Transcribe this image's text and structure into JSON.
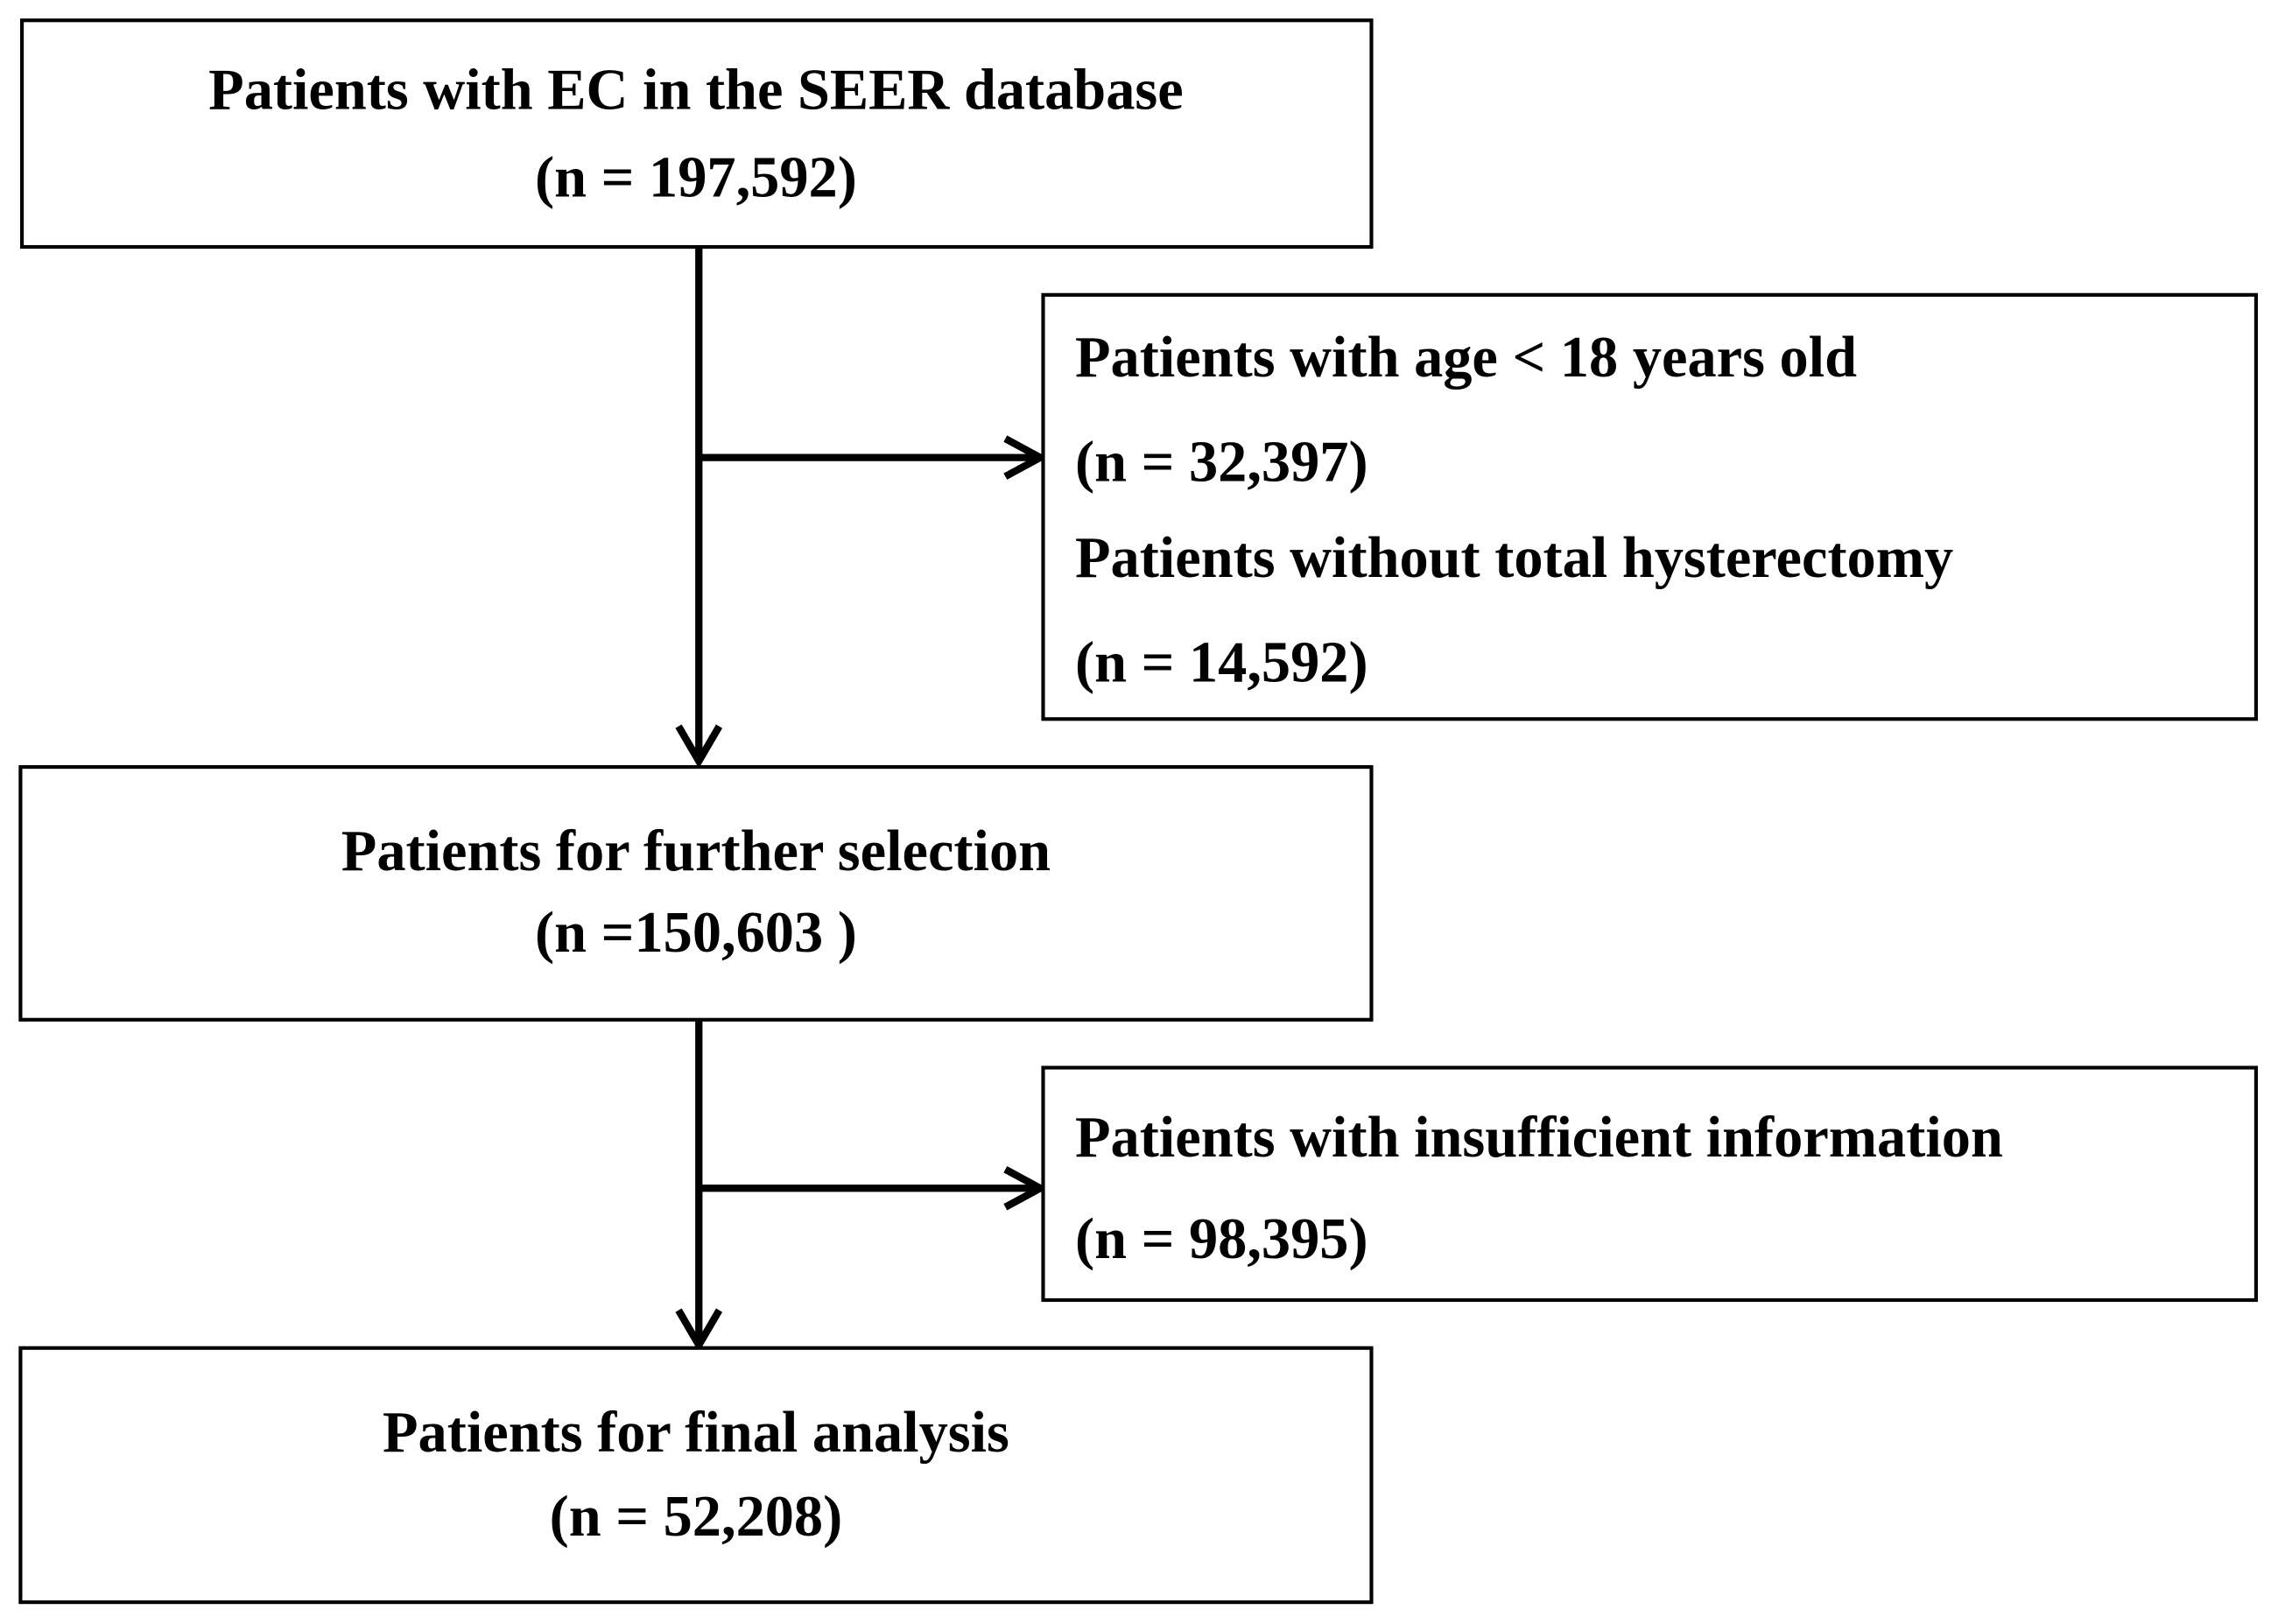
{
  "nodes": [
    {
      "lines": [
        "Patients with EC in the SEER database",
        "(n = 197,592)"
      ]
    },
    {
      "lines": [
        "Patients with age < 18 years old",
        "(n = 32,397)",
        "Patients without total hysterectomy",
        "(n = 14,592)"
      ]
    },
    {
      "lines": [
        "Patients for further selection",
        "(n =150,603 )"
      ]
    },
    {
      "lines": [
        "Patients with insufficient information",
        "(n = 98,395)"
      ]
    },
    {
      "lines": [
        "Patients for final analysis",
        "(n = 52,208)"
      ]
    }
  ]
}
